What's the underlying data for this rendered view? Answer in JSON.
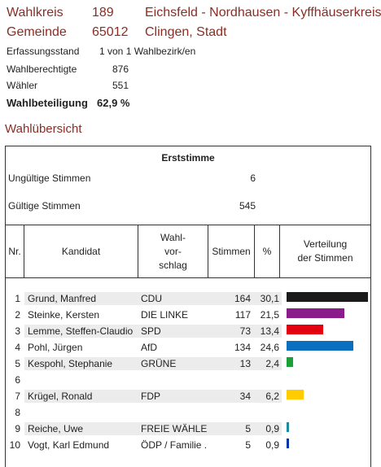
{
  "header": {
    "wahlkreis_label": "Wahlkreis",
    "wahlkreis_nr": "189",
    "wahlkreis_name": "Eichsfeld - Nordhausen - Kyffhäuserkreis",
    "gemeinde_label": "Gemeinde",
    "gemeinde_nr": "65012",
    "gemeinde_name": "Clingen, Stadt"
  },
  "info": {
    "erfassungsstand_label": "Erfassungsstand",
    "erfassungsstand_value": "1 von 1 Wahlbezirk/en",
    "wahlberechtigte_label": "Wahlberechtigte",
    "wahlberechtigte_value": "876",
    "waehler_label": "Wähler",
    "waehler_value": "551",
    "wahlbeteiligung_label": "Wahlbeteiligung",
    "wahlbeteiligung_value": "62,9 %"
  },
  "section_title": "Wahlübersicht",
  "table": {
    "title": "Erststimme",
    "ungueltige_label": "Ungültige Stimmen",
    "ungueltige_value": "6",
    "gueltige_label": "Gültige Stimmen",
    "gueltige_value": "545",
    "columns": {
      "nr": "Nr.",
      "kandidat": "Kandidat",
      "wahlvorschlag_1": "Wahl-",
      "wahlvorschlag_2": "vor-",
      "wahlvorschlag_3": "schlag",
      "stimmen": "Stimmen",
      "prozent": "%",
      "verteilung_1": "Verteilung",
      "verteilung_2": "der Stimmen"
    },
    "rows": [
      {
        "nr": "1",
        "name": "Grund, Manfred",
        "party": "CDU",
        "votes": "164",
        "pct": "30,1",
        "share": 30.1,
        "color": "#1a1a1a"
      },
      {
        "nr": "2",
        "name": "Steinke, Kersten",
        "party": "DIE LINKE",
        "votes": "117",
        "pct": "21,5",
        "share": 21.5,
        "color": "#8b1a8b"
      },
      {
        "nr": "3",
        "name": "Lemme, Steffen-Claudio",
        "party": "SPD",
        "votes": "73",
        "pct": "13,4",
        "share": 13.4,
        "color": "#e3000f"
      },
      {
        "nr": "4",
        "name": "Pohl, Jürgen",
        "party": "AfD",
        "votes": "134",
        "pct": "24,6",
        "share": 24.6,
        "color": "#0a6fbf"
      },
      {
        "nr": "5",
        "name": "Kespohl, Stephanie",
        "party": "GRÜNE",
        "votes": "13",
        "pct": "2,4",
        "share": 2.4,
        "color": "#1aa037"
      },
      {
        "nr": "6",
        "name": "",
        "party": "",
        "votes": "",
        "pct": "",
        "share": 0,
        "color": "#ffffff"
      },
      {
        "nr": "7",
        "name": "Krügel, Ronald",
        "party": "FDP",
        "votes": "34",
        "pct": "6,2",
        "share": 6.2,
        "color": "#ffcc00"
      },
      {
        "nr": "8",
        "name": "",
        "party": "",
        "votes": "",
        "pct": "",
        "share": 0,
        "color": "#ffffff"
      },
      {
        "nr": "9",
        "name": "Reiche, Uwe",
        "party": "FREIE WÄHLER",
        "votes": "5",
        "pct": "0,9",
        "share": 0.9,
        "color": "#1a8c9c"
      },
      {
        "nr": "10",
        "name": "Vogt, Karl Edmund",
        "party": "ÖDP / Familie ..",
        "votes": "5",
        "pct": "0,9",
        "share": 0.9,
        "color": "#0033aa"
      }
    ]
  },
  "colors": {
    "header_text": "#8b2d24",
    "row_band": "#ececec"
  }
}
